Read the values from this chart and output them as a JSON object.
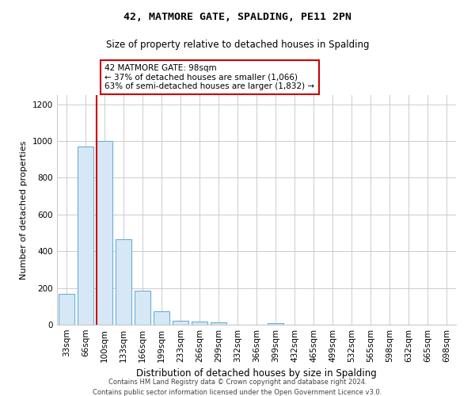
{
  "title": "42, MATMORE GATE, SPALDING, PE11 2PN",
  "subtitle": "Size of property relative to detached houses in Spalding",
  "xlabel": "Distribution of detached houses by size in Spalding",
  "ylabel": "Number of detached properties",
  "bins": [
    "33sqm",
    "66sqm",
    "100sqm",
    "133sqm",
    "166sqm",
    "199sqm",
    "233sqm",
    "266sqm",
    "299sqm",
    "332sqm",
    "366sqm",
    "399sqm",
    "432sqm",
    "465sqm",
    "499sqm",
    "532sqm",
    "565sqm",
    "598sqm",
    "632sqm",
    "665sqm",
    "698sqm"
  ],
  "values": [
    170,
    970,
    1000,
    465,
    185,
    73,
    23,
    18,
    12,
    0,
    0,
    10,
    0,
    0,
    0,
    0,
    0,
    0,
    0,
    0,
    0
  ],
  "bar_facecolor": "#d6e8f5",
  "bar_edgecolor": "#6aafd6",
  "vline_bar_index": 2,
  "vline_color": "#cc0000",
  "annotation_text": "42 MATMORE GATE: 98sqm\n← 37% of detached houses are smaller (1,066)\n63% of semi-detached houses are larger (1,832) →",
  "annotation_box_facecolor": "#ffffff",
  "annotation_box_edgecolor": "#cc0000",
  "ylim": [
    0,
    1250
  ],
  "yticks": [
    0,
    200,
    400,
    600,
    800,
    1000,
    1200
  ],
  "footer1": "Contains HM Land Registry data © Crown copyright and database right 2024.",
  "footer2": "Contains public sector information licensed under the Open Government Licence v3.0.",
  "bg_color": "#ffffff",
  "grid_color": "#cccccc",
  "title_fontsize": 9.5,
  "subtitle_fontsize": 8.5,
  "ylabel_fontsize": 8,
  "xlabel_fontsize": 8.5,
  "tick_fontsize": 7.5,
  "annotation_fontsize": 7.5,
  "footer_fontsize": 6.0
}
